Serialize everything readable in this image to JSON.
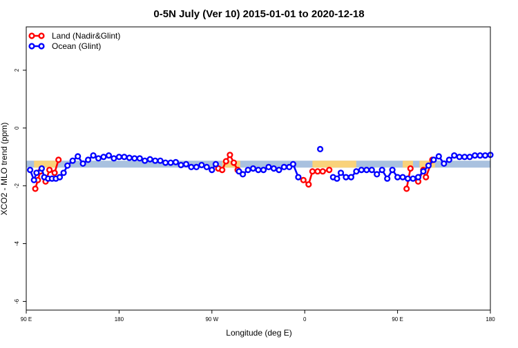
{
  "chart_data": {
    "type": "line",
    "title": "0-5N July (Ver 10)   2015-01-01 to 2020-12-18",
    "xlabel": "Longitude (deg E)",
    "ylabel": "XCO2 - MLO trend (ppm)",
    "xlim": [
      90,
      450
    ],
    "ylim": [
      -6.3,
      3.5
    ],
    "x_ticks": [
      {
        "value": 90,
        "label": "90 E"
      },
      {
        "value": 162,
        "label": "180"
      },
      {
        "value": 234,
        "label": "90 W"
      },
      {
        "value": 306,
        "label": "0"
      },
      {
        "value": 378,
        "label": "90 E"
      },
      {
        "value": 450,
        "label": "180"
      }
    ],
    "y_ticks": [
      {
        "value": 2,
        "label": "2"
      },
      {
        "value": 0,
        "label": "0"
      },
      {
        "value": -2,
        "label": "-2"
      },
      {
        "value": -4,
        "label": "-4"
      },
      {
        "value": -6,
        "label": "-6"
      }
    ],
    "legend": {
      "position": "top-left",
      "entries": [
        {
          "label": "Land (Nadir&Glint)",
          "color": "#ff0000"
        },
        {
          "label": "Ocean (Glint)",
          "color": "#0000ff"
        }
      ]
    },
    "band": {
      "ymin": -1.37,
      "ymax": -1.13,
      "color": "#a9c1df"
    },
    "land_regions": {
      "color": "#f9d27a",
      "ranges": [
        [
          96,
          114
        ],
        [
          242,
          256
        ],
        [
          312,
          346
        ],
        [
          382,
          390
        ],
        [
          395,
          407
        ]
      ]
    },
    "series": [
      {
        "name": "Land (Nadir&Glint)",
        "color": "#ff0000",
        "segments": [
          [
            [
              97,
              -2.1
            ],
            [
              99,
              -1.8
            ],
            [
              101,
              -1.5
            ]
          ],
          [
            [
              105,
              -1.85
            ],
            [
              108,
              -1.45
            ],
            [
              112,
              -1.55
            ],
            [
              115,
              -1.1
            ]
          ],
          [
            [
              239,
              -1.4
            ],
            [
              242,
              -1.45
            ],
            [
              245,
              -1.15
            ],
            [
              248,
              -0.93
            ],
            [
              251,
              -1.2
            ],
            [
              254,
              -1.45
            ]
          ],
          [
            [
              305,
              -1.8
            ],
            [
              309,
              -1.95
            ],
            [
              312,
              -1.5
            ],
            [
              316,
              -1.5
            ],
            [
              320,
              -1.5
            ],
            [
              325,
              -1.45
            ]
          ],
          [
            [
              385,
              -2.1
            ],
            [
              388,
              -1.4
            ]
          ],
          [
            [
              394,
              -1.85
            ],
            [
              398,
              -1.45
            ],
            [
              400,
              -1.7
            ],
            [
              405,
              -1.1
            ]
          ]
        ]
      },
      {
        "name": "Ocean (Glint)",
        "color": "#0000ff",
        "segments": [
          [
            [
              93,
              -1.45
            ],
            [
              96,
              -1.8
            ],
            [
              98,
              -1.55
            ],
            [
              102,
              -1.4
            ],
            [
              104,
              -1.7
            ],
            [
              107,
              -1.75
            ],
            [
              110,
              -1.75
            ],
            [
              113,
              -1.75
            ],
            [
              116,
              -1.7
            ],
            [
              119,
              -1.55
            ],
            [
              122,
              -1.3
            ],
            [
              126,
              -1.13
            ],
            [
              130,
              -0.98
            ],
            [
              134,
              -1.23
            ],
            [
              138,
              -1.1
            ],
            [
              142,
              -0.95
            ],
            [
              146,
              -1.05
            ],
            [
              150,
              -1.0
            ],
            [
              154,
              -0.95
            ],
            [
              158,
              -1.05
            ],
            [
              162,
              -1.0
            ],
            [
              166,
              -1.0
            ],
            [
              170,
              -1.03
            ],
            [
              174,
              -1.05
            ],
            [
              178,
              -1.05
            ],
            [
              182,
              -1.13
            ],
            [
              186,
              -1.08
            ],
            [
              190,
              -1.13
            ],
            [
              194,
              -1.13
            ],
            [
              198,
              -1.2
            ],
            [
              202,
              -1.2
            ],
            [
              206,
              -1.18
            ],
            [
              210,
              -1.28
            ],
            [
              214,
              -1.25
            ],
            [
              218,
              -1.35
            ],
            [
              222,
              -1.35
            ],
            [
              226,
              -1.28
            ],
            [
              230,
              -1.35
            ],
            [
              234,
              -1.45
            ],
            [
              237,
              -1.25
            ]
          ],
          [
            [
              255,
              -1.5
            ],
            [
              258,
              -1.6
            ],
            [
              262,
              -1.45
            ],
            [
              266,
              -1.4
            ],
            [
              270,
              -1.45
            ],
            [
              274,
              -1.45
            ],
            [
              278,
              -1.35
            ],
            [
              282,
              -1.4
            ],
            [
              286,
              -1.45
            ],
            [
              290,
              -1.35
            ],
            [
              294,
              -1.35
            ],
            [
              297,
              -1.25
            ],
            [
              301,
              -1.7
            ]
          ],
          [
            [
              328,
              -1.7
            ],
            [
              331,
              -1.75
            ],
            [
              334,
              -1.55
            ],
            [
              338,
              -1.7
            ],
            [
              342,
              -1.7
            ],
            [
              346,
              -1.5
            ],
            [
              350,
              -1.45
            ],
            [
              354,
              -1.45
            ],
            [
              358,
              -1.45
            ],
            [
              362,
              -1.6
            ],
            [
              366,
              -1.45
            ],
            [
              370,
              -1.75
            ],
            [
              374,
              -1.45
            ],
            [
              378,
              -1.7
            ],
            [
              382,
              -1.7
            ],
            [
              386,
              -1.75
            ],
            [
              390,
              -1.75
            ],
            [
              394,
              -1.7
            ],
            [
              398,
              -1.5
            ],
            [
              402,
              -1.3
            ],
            [
              406,
              -1.1
            ],
            [
              410,
              -0.98
            ],
            [
              414,
              -1.23
            ],
            [
              418,
              -1.1
            ],
            [
              422,
              -0.95
            ],
            [
              426,
              -1.0
            ],
            [
              430,
              -1.0
            ],
            [
              434,
              -1.0
            ],
            [
              438,
              -0.95
            ],
            [
              442,
              -0.95
            ],
            [
              446,
              -0.95
            ],
            [
              450,
              -0.93
            ]
          ],
          [
            [
              318,
              -0.73
            ]
          ]
        ]
      }
    ]
  }
}
